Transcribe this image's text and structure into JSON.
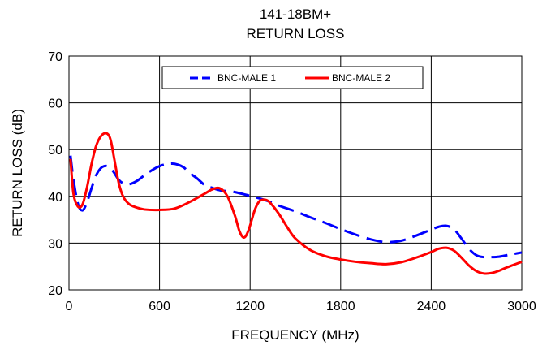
{
  "chart_data": {
    "type": "line",
    "title": "141-18BM+",
    "subtitle": "RETURN LOSS",
    "xlabel": "FREQUENCY (MHz)",
    "ylabel": "RETURN LOSS (dB)",
    "xlim": [
      0,
      3000
    ],
    "ylim": [
      20,
      70
    ],
    "xticks": [
      0,
      600,
      1200,
      1800,
      2400,
      3000
    ],
    "xtick_labels": [
      "0",
      "600",
      "1200",
      "1800",
      "2400",
      "3000"
    ],
    "yticks": [
      20,
      30,
      40,
      50,
      60,
      70
    ],
    "ytick_labels": [
      "20",
      "30",
      "40",
      "50",
      "60",
      "70"
    ],
    "grid": true,
    "legend_position": "top-center",
    "series": [
      {
        "name": "BNC-MALE 1",
        "color": "#0000ff",
        "dash": "dashed",
        "x": [
          10,
          30,
          60,
          90,
          120,
          150,
          180,
          210,
          240,
          270,
          300,
          330,
          360,
          400,
          450,
          500,
          560,
          620,
          680,
          720,
          760,
          800,
          850,
          900,
          950,
          1000,
          1050,
          1100,
          1200,
          1300,
          1400,
          1500,
          1600,
          1700,
          1800,
          1900,
          2000,
          2100,
          2200,
          2300,
          2400,
          2450,
          2500,
          2550,
          2600,
          2650,
          2700,
          2750,
          2800,
          2850,
          2900,
          2950,
          3000
        ],
        "y": [
          48.7,
          43.5,
          38.3,
          37.0,
          38.8,
          41.8,
          44.5,
          46.0,
          46.5,
          46.2,
          45.0,
          43.5,
          42.8,
          42.6,
          43.3,
          44.5,
          45.8,
          46.7,
          47.0,
          46.8,
          46.2,
          45.0,
          43.8,
          42.4,
          41.8,
          41.3,
          41.1,
          40.9,
          40.1,
          39.2,
          37.9,
          36.8,
          35.5,
          34.3,
          33.0,
          31.8,
          30.8,
          30.2,
          30.5,
          31.6,
          32.9,
          33.5,
          33.7,
          33.0,
          31.0,
          28.8,
          27.4,
          27.0,
          27.0,
          27.1,
          27.4,
          27.7,
          28.0
        ]
      },
      {
        "name": "BNC-MALE 2",
        "color": "#ff0000",
        "dash": "solid",
        "x": [
          10,
          30,
          60,
          90,
          120,
          150,
          180,
          210,
          240,
          265,
          280,
          300,
          330,
          360,
          400,
          450,
          500,
          600,
          700,
          800,
          900,
          950,
          1000,
          1050,
          1100,
          1130,
          1160,
          1190,
          1230,
          1260,
          1290,
          1320,
          1360,
          1400,
          1450,
          1500,
          1600,
          1700,
          1800,
          1900,
          2000,
          2100,
          2200,
          2300,
          2400,
          2450,
          2500,
          2550,
          2600,
          2650,
          2700,
          2750,
          2800,
          2850,
          2900,
          2950,
          3000
        ],
        "y": [
          48.0,
          40.5,
          37.8,
          38.3,
          42.0,
          47.0,
          50.8,
          52.8,
          53.5,
          53.0,
          51.5,
          48.0,
          42.8,
          39.9,
          38.3,
          37.6,
          37.2,
          37.1,
          37.4,
          38.8,
          40.6,
          41.5,
          41.7,
          40.0,
          35.8,
          32.5,
          31.2,
          32.8,
          37.0,
          38.9,
          39.3,
          39.0,
          37.6,
          35.8,
          33.2,
          31.0,
          28.5,
          27.2,
          26.5,
          26.0,
          25.7,
          25.5,
          25.9,
          26.9,
          28.1,
          28.8,
          29.0,
          28.4,
          26.9,
          25.2,
          24.0,
          23.5,
          23.6,
          24.1,
          24.8,
          25.4,
          26.0
        ]
      }
    ]
  }
}
